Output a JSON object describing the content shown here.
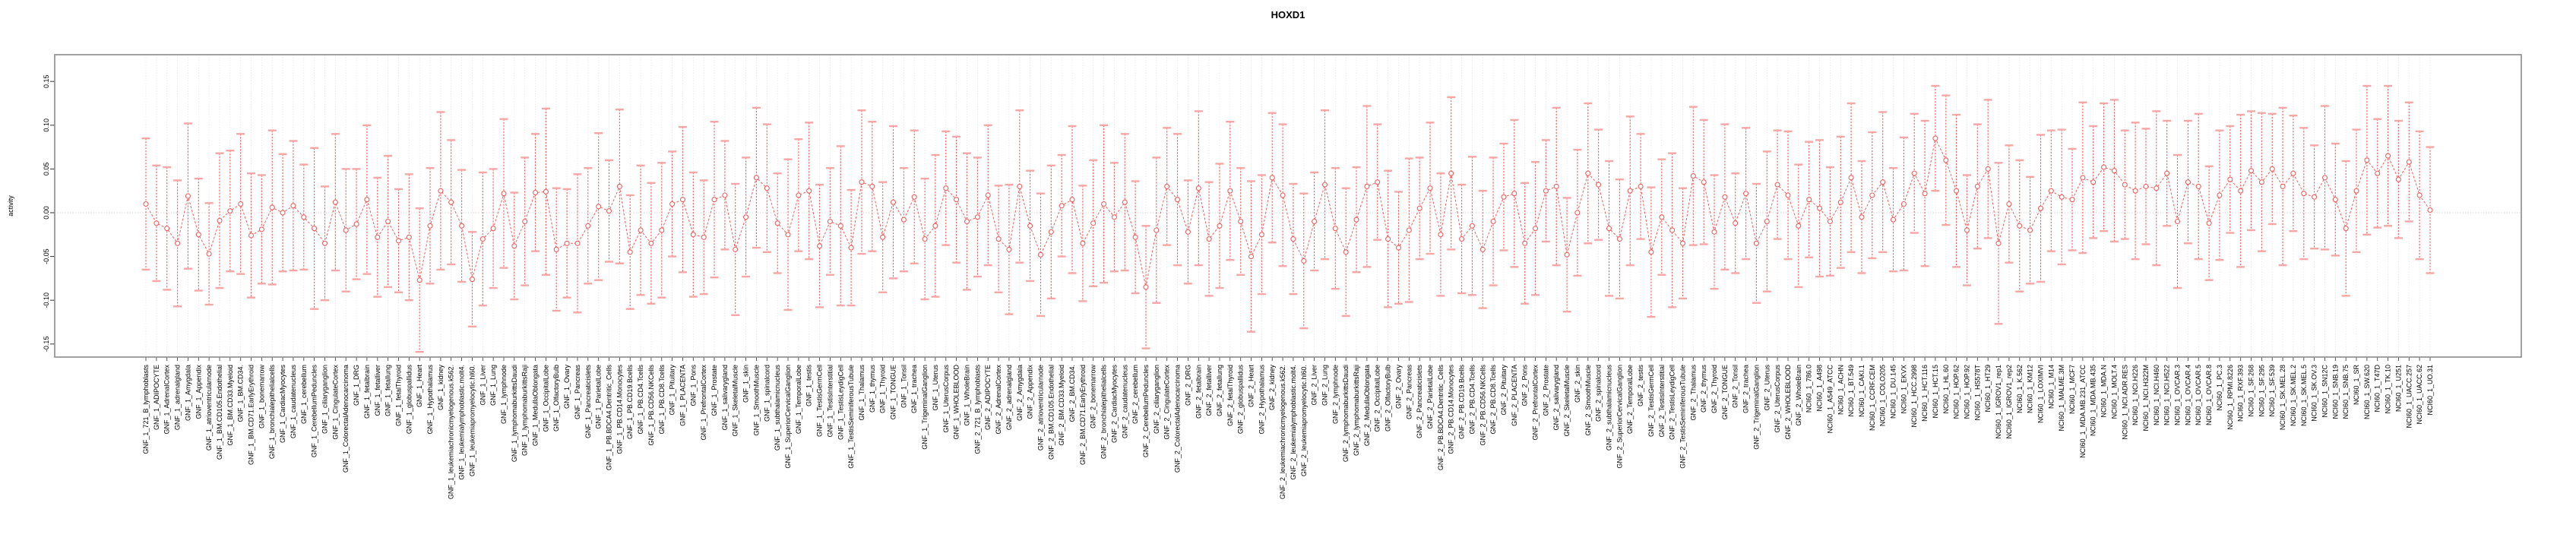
{
  "header": {
    "title": "HOXD1"
  },
  "colors": {
    "series": "#f15f5f",
    "cap": "#f7a6a6",
    "grid": "#dcdcdc",
    "zero_line": "#c9c9c9",
    "box": "#8a8a8a",
    "tick": "#333333",
    "text": "#000000"
  },
  "chart_data": {
    "type": "line",
    "subtype": "means-with-error-bars",
    "title": "HOXD1",
    "xlabel": "",
    "ylabel": "activity",
    "ylim": [
      -0.165,
      0.18
    ],
    "yticks": [
      -0.15,
      -0.1,
      -0.05,
      0.0,
      0.05,
      0.1,
      0.15
    ],
    "ytick_labels": [
      "-0.15",
      "-0.10",
      "-0.05",
      "0.00",
      "0.05",
      "0.10",
      "0.15"
    ],
    "grid": "vertical dotted gridline at every category; dotted horizontal line at 0",
    "legend": "none",
    "marker": "open-circle",
    "line_style": "dashed",
    "categories": [
      "GNF_1_721_B_lymphoblasts",
      "GNF_1_ADIPOCYTE",
      "GNF_1_AdrenalCortex",
      "GNF_1_adrenalgland",
      "GNF_1_Amygdala",
      "GNF_1_Appendix",
      "GNF_1_atrioventricularnode",
      "GNF_1_BM.CD105.Endothelial",
      "GNF_1_BM.CD33.Myeloid",
      "GNF_1_BM.CD34.",
      "GNF_1_BM.CD71.EarlyErythroid",
      "GNF_1_bonemarrow",
      "GNF_1_bronchialepithelialcells",
      "GNF_1_CardiacMyocytes",
      "GNF_1_caudatenucleus",
      "GNF_1_cerebellum",
      "GNF_1_CerebellumPeduncles",
      "GNF_1_ciliaryganglion",
      "GNF_1_CingulateCortex",
      "GNF_1_ColorectalAdenocarcinoma",
      "GNF_1_DRG",
      "GNF_1_fetalbrain",
      "GNF_1_fetalliver",
      "GNF_1_fetallung",
      "GNF_1_fetalThyroid",
      "GNF_1_globuspallidus",
      "GNF_1_Heart",
      "GNF_1_Hypothalamus",
      "GNF_1_kidney",
      "GNF_1_leukemiachronicmyelogenous.k562.",
      "GNF_1_leukemialymphoblastic.molt4.",
      "GNF_1_leukemiapromyelocytic.hl60.",
      "GNF_1_Liver",
      "GNF_1_Lung",
      "GNF_1_lymphnode",
      "GNF_1_lymphomaburkittsDaudi",
      "GNF_1_lymphomaburkittsRaji",
      "GNF_1_MedullaOblongata",
      "GNF_1_OccipitalLobe",
      "GNF_1_OlfactoryBulb",
      "GNF_1_Ovary",
      "GNF_1_Pancreas",
      "GNF_1_Pancreaticislets",
      "GNF_1_ParietalLobe",
      "GNF_1_PB.BDCA4.Dentritic_Cells",
      "GNF_1_PB.CD14.Monocytes",
      "GNF_1_PB.CD19.Bcells",
      "GNF_1_PB.CD4.Tcells",
      "GNF_1_PB.CD56.NKCells",
      "GNF_1_PB.CD8.Tcells",
      "GNF_1_Pituitary",
      "GNF_1_PLACENTA",
      "GNF_1_Pons",
      "GNF_1_PrefrontalCortex",
      "GNF_1_Prostate",
      "GNF_1_salivarygland",
      "GNF_1_SkeletalMuscle",
      "GNF_1_skin",
      "GNF_1_SmoothMuscle",
      "GNF_1_spinalcord",
      "GNF_1_subthalamicnucleus",
      "GNF_1_SuperiorCervicalGanglion",
      "GNF_1_TemporalLobe",
      "GNF_1_testis",
      "GNF_1_TestisGermCell",
      "GNF_1_TestisInterstitial",
      "GNF_1_TestisLeydigCell",
      "GNF_1_TestisSeminiferousTubule",
      "GNF_1_Thalamus",
      "GNF_1_thymus",
      "GNF_1_Thyroid",
      "GNF_1_TONGUE",
      "GNF_1_Tonsil",
      "GNF_1_trachea",
      "GNF_1_TrigeminalGanglion",
      "GNF_1_Uterus",
      "GNF_1_UterusCorpus",
      "GNF_1_WHOLEBLOOD",
      "GNF_1_WholeBrain",
      "GNF_2_721_B_lymphoblasts",
      "GNF_2_ADIPOCYTE",
      "GNF_2_AdrenalCortex",
      "GNF_2_adrenalgland",
      "GNF_2_Amygdala",
      "GNF_2_Appendix",
      "GNF_2_atrioventricularnode",
      "GNF_2_BM.CD105.Endothelial",
      "GNF_2_BM.CD33.Myeloid",
      "GNF_2_BM.CD34.",
      "GNF_2_BM.CD71.EarlyErythroid",
      "GNF_2_bonemarrow",
      "GNF_2_bronchialepithelialcells",
      "GNF_2_CardiacMyocytes",
      "GNF_2_caudatenucleus",
      "GNF_2_cerebellum",
      "GNF_2_CerebellumPeduncles",
      "GNF_2_ciliaryganglion",
      "GNF_2_CingulateCortex",
      "GNF_2_ColorectalAdenocarcinoma",
      "GNF_2_DRG",
      "GNF_2_fetalbrain",
      "GNF_2_fetalliver",
      "GNF_2_fetallung",
      "GNF_2_fetalThyroid",
      "GNF_2_globuspallidus",
      "GNF_2_Heart",
      "GNF_2_Hypothalamus",
      "GNF_2_kidney",
      "GNF_2_leukemiachronicmyelogenous.k562.",
      "GNF_2_leukemialymphoblastic.molt4.",
      "GNF_2_leukemiapromyelocytic.hl60.",
      "GNF_2_Liver",
      "GNF_2_Lung",
      "GNF_2_lymphnode",
      "GNF_2_lymphomaburkittsDaudi",
      "GNF_2_lymphomaburkittsRaji",
      "GNF_2_MedullaOblongata",
      "GNF_2_OccipitalLobe",
      "GNF_2_OlfactoryBulb",
      "GNF_2_Ovary",
      "GNF_2_Pancreas",
      "GNF_2_Pancreaticislets",
      "GNF_2_ParietalLobe",
      "GNF_2_PB.BDCA4.Dentritic_Cells",
      "GNF_2_PB.CD14.Monocytes",
      "GNF_2_PB.CD19.Bcells",
      "GNF_2_PB.CD4.Tcells",
      "GNF_2_PB.CD56.NKCells",
      "GNF_2_PB.CD8.Tcells",
      "GNF_2_Pituitary",
      "GNF_2_PLACENTA",
      "GNF_2_Pons",
      "GNF_2_PrefrontalCortex",
      "GNF_2_Prostate",
      "GNF_2_salivarygland",
      "GNF_2_SkeletalMuscle",
      "GNF_2_skin",
      "GNF_2_SmoothMuscle",
      "GNF_2_spinalcord",
      "GNF_2_subthalamicnucleus",
      "GNF_2_SuperiorCervicalGanglion",
      "GNF_2_TemporalLobe",
      "GNF_2_testis",
      "GNF_2_TestisGermCell",
      "GNF_2_TestisInterstitial",
      "GNF_2_TestisLeydigCell",
      "GNF_2_TestisSeminiferousTubule",
      "GNF_2_Thalamus",
      "GNF_2_thymus",
      "GNF_2_Thyroid",
      "GNF_2_TONGUE",
      "GNF_2_Tonsil",
      "GNF_2_trachea",
      "GNF_2_TrigeminalGanglion",
      "GNF_2_Uterus",
      "GNF_2_UterusCorpus",
      "GNF_2_WHOLEBLOOD",
      "GNF_2_WholeBrain",
      "NCI60_1_786.0",
      "NCI60_1_A498",
      "NCI60_1_A549_ATCC",
      "NCI60_1_ACHN",
      "NCI60_1_BT.549",
      "NCI60_1_CAKI.1",
      "NCI60_1_CCRF.CEM",
      "NCI60_1_COLO205",
      "NCI60_1_DU.145",
      "NCI60_1_EKVX",
      "NCI60_1_HCC.2998",
      "NCI60_1_HCT.116",
      "NCI60_1_HCT.15",
      "NCI60_1_HL.60",
      "NCI60_1_HOP.62",
      "NCI60_1_HOP.92",
      "NCI60_1_HS578T",
      "NCI60_1_HT29",
      "NCI60_1_IGROV1_rep1",
      "NCI60_1_IGROV1_rep2",
      "NCI60_1_K.562",
      "NCI60_1_KM12",
      "NCI60_1_LOXIMVI",
      "NCI60_1_M14",
      "NCI60_1_MALME.3M",
      "NCI60_1_MCF7",
      "NCI60_1_MDA.MB.231_ATCC",
      "NCI60_1_MDA.MB.435",
      "NCI60_1_MDA.N",
      "NCI60_1_MOLT.4",
      "NCI60_1_NCI.ADR.RES",
      "NCI60_1_NCI.H226",
      "NCI60_1_NCI.H322M",
      "NCI60_1_NCI.H460",
      "NCI60_1_NCI.H522",
      "NCI60_1_OVCAR.3",
      "NCI60_1_OVCAR.4",
      "NCI60_1_OVCAR.5",
      "NCI60_1_OVCAR.8",
      "NCI60_1_PC.3",
      "NCI60_1_RPMI.8226",
      "NCI60_1_RXF.393",
      "NCI60_1_SF.268",
      "NCI60_1_SF.295",
      "NCI60_1_SF.539",
      "NCI60_1_SK.MEL.28",
      "NCI60_1_SK.MEL.2",
      "NCI60_1_SK.MEL.5",
      "NCI60_1_SK.OV.3",
      "NCI60_1_SN12C",
      "NCI60_1_SNB.19",
      "NCI60_1_SNB.75",
      "NCI60_1_SR",
      "NCI60_1_SW.620",
      "NCI60_1_T47D",
      "NCI60_1_TK.10",
      "NCI60_1_U251",
      "NCI60_1_UACC.257",
      "NCI60_1_UACC.62",
      "NCI60_1_UO.31"
    ],
    "series": [
      {
        "name": "activity",
        "values": [
          0.01,
          -0.012,
          -0.018,
          -0.035,
          0.019,
          -0.025,
          -0.047,
          -0.009,
          0.002,
          0.01,
          -0.026,
          -0.019,
          0.006,
          0.0,
          0.008,
          -0.005,
          -0.018,
          -0.035,
          0.012,
          -0.02,
          -0.013,
          0.015,
          -0.028,
          -0.01,
          -0.032,
          -0.028,
          -0.077,
          -0.015,
          0.025,
          0.012,
          -0.015,
          -0.076,
          -0.03,
          -0.018,
          0.022,
          -0.038,
          -0.01,
          0.023,
          0.024,
          -0.042,
          -0.035,
          -0.035,
          -0.015,
          0.007,
          0.002,
          0.03,
          -0.045,
          -0.02,
          -0.035,
          -0.02,
          0.01,
          0.015,
          -0.025,
          -0.028,
          0.015,
          0.02,
          -0.042,
          -0.005,
          0.04,
          0.028,
          -0.012,
          -0.025,
          0.02,
          0.025,
          -0.038,
          -0.01,
          -0.015,
          -0.04,
          0.035,
          0.03,
          -0.028,
          0.012,
          -0.008,
          0.018,
          -0.03,
          -0.015,
          0.028,
          0.015,
          -0.01,
          -0.005,
          0.02,
          -0.03,
          -0.042,
          0.03,
          -0.015,
          -0.048,
          -0.022,
          0.008,
          0.015,
          -0.035,
          -0.012,
          0.01,
          -0.005,
          0.012,
          -0.028,
          -0.085,
          -0.02,
          0.03,
          0.015,
          -0.022,
          0.028,
          -0.03,
          -0.015,
          0.025,
          -0.01,
          -0.05,
          -0.025,
          0.04,
          0.02,
          -0.03,
          -0.055,
          -0.01,
          0.032,
          -0.018,
          -0.045,
          -0.008,
          0.03,
          0.035,
          -0.03,
          -0.04,
          -0.02,
          0.005,
          0.028,
          -0.025,
          0.045,
          -0.03,
          -0.015,
          -0.042,
          -0.01,
          0.018,
          0.022,
          -0.035,
          -0.018,
          0.025,
          0.03,
          -0.048,
          0.0,
          0.045,
          0.032,
          -0.018,
          -0.03,
          0.025,
          0.03,
          -0.045,
          -0.005,
          -0.02,
          -0.035,
          0.042,
          0.035,
          -0.022,
          0.018,
          -0.012,
          0.022,
          -0.035,
          -0.01,
          0.032,
          0.02,
          -0.015,
          0.015,
          0.005,
          -0.01,
          0.012,
          0.04,
          -0.005,
          0.02,
          0.035,
          -0.008,
          0.01,
          0.045,
          0.022,
          0.085,
          0.06,
          0.025,
          -0.02,
          0.03,
          0.05,
          -0.035,
          0.01,
          -0.015,
          -0.02,
          0.005,
          0.025,
          0.018,
          0.015,
          0.04,
          0.035,
          0.052,
          0.048,
          0.032,
          0.025,
          0.03,
          0.028,
          0.045,
          -0.01,
          0.035,
          0.03,
          -0.012,
          0.02,
          0.038,
          0.025,
          0.048,
          0.035,
          0.05,
          0.03,
          0.045,
          0.022,
          0.018,
          0.04,
          0.015,
          -0.018,
          0.025,
          0.06,
          0.045,
          0.065,
          0.038,
          0.058,
          0.02,
          0.003
        ],
        "errors": [
          0.075,
          0.066,
          0.07,
          0.072,
          0.083,
          0.064,
          0.058,
          0.077,
          0.069,
          0.08,
          0.071,
          0.062,
          0.088,
          0.067,
          0.074,
          0.06,
          0.092,
          0.065,
          0.078,
          0.07,
          0.063,
          0.085,
          0.068,
          0.075,
          0.059,
          0.072,
          0.082,
          0.066,
          0.09,
          0.071,
          0.064,
          0.054,
          0.076,
          0.068,
          0.085,
          0.061,
          0.073,
          0.067,
          0.095,
          0.07,
          0.062,
          0.079,
          0.066,
          0.084,
          0.058,
          0.088,
          0.065,
          0.074,
          0.069,
          0.077,
          0.06,
          0.083,
          0.071,
          0.065,
          0.089,
          0.062,
          0.075,
          0.068,
          0.08,
          0.073,
          0.057,
          0.086,
          0.064,
          0.078,
          0.07,
          0.061,
          0.091,
          0.066,
          0.082,
          0.074,
          0.063,
          0.087,
          0.059,
          0.076,
          0.069,
          0.081,
          0.065,
          0.072,
          0.078,
          0.068,
          0.08,
          0.061,
          0.074,
          0.087,
          0.063,
          0.07,
          0.076,
          0.058,
          0.084,
          0.066,
          0.072,
          0.09,
          0.062,
          0.078,
          0.064,
          0.07,
          0.083,
          0.067,
          0.075,
          0.059,
          0.088,
          0.065,
          0.071,
          0.079,
          0.061,
          0.086,
          0.068,
          0.074,
          0.081,
          0.063,
          0.077,
          0.056,
          0.085,
          0.069,
          0.073,
          0.06,
          0.092,
          0.066,
          0.078,
          0.064,
          0.082,
          0.058,
          0.075,
          0.07,
          0.087,
          0.062,
          0.079,
          0.067,
          0.073,
          0.061,
          0.084,
          0.069,
          0.076,
          0.058,
          0.09,
          0.065,
          0.072,
          0.08,
          0.063,
          0.077,
          0.068,
          0.085,
          0.06,
          0.074,
          0.066,
          0.088,
          0.063,
          0.079,
          0.071,
          0.065,
          0.083,
          0.057,
          0.075,
          0.068,
          0.08,
          0.062,
          0.073,
          0.07,
          0.066,
          0.078,
          0.062,
          0.075,
          0.085,
          0.064,
          0.072,
          0.08,
          0.059,
          0.076,
          0.068,
          0.083,
          0.06,
          0.074,
          0.087,
          0.063,
          0.071,
          0.079,
          0.092,
          0.067,
          0.075,
          0.061,
          0.084,
          0.069,
          0.077,
          0.058,
          0.086,
          0.064,
          0.073,
          0.081,
          0.062,
          0.078,
          0.066,
          0.088,
          0.06,
          0.076,
          0.07,
          0.083,
          0.065,
          0.074,
          0.061,
          0.087,
          0.068,
          0.079,
          0.063,
          0.09,
          0.066,
          0.075,
          0.059,
          0.082,
          0.064,
          0.077,
          0.07,
          0.085,
          0.062,
          0.08,
          0.067,
          0.068,
          0.073,
          0.072
        ]
      }
    ]
  }
}
